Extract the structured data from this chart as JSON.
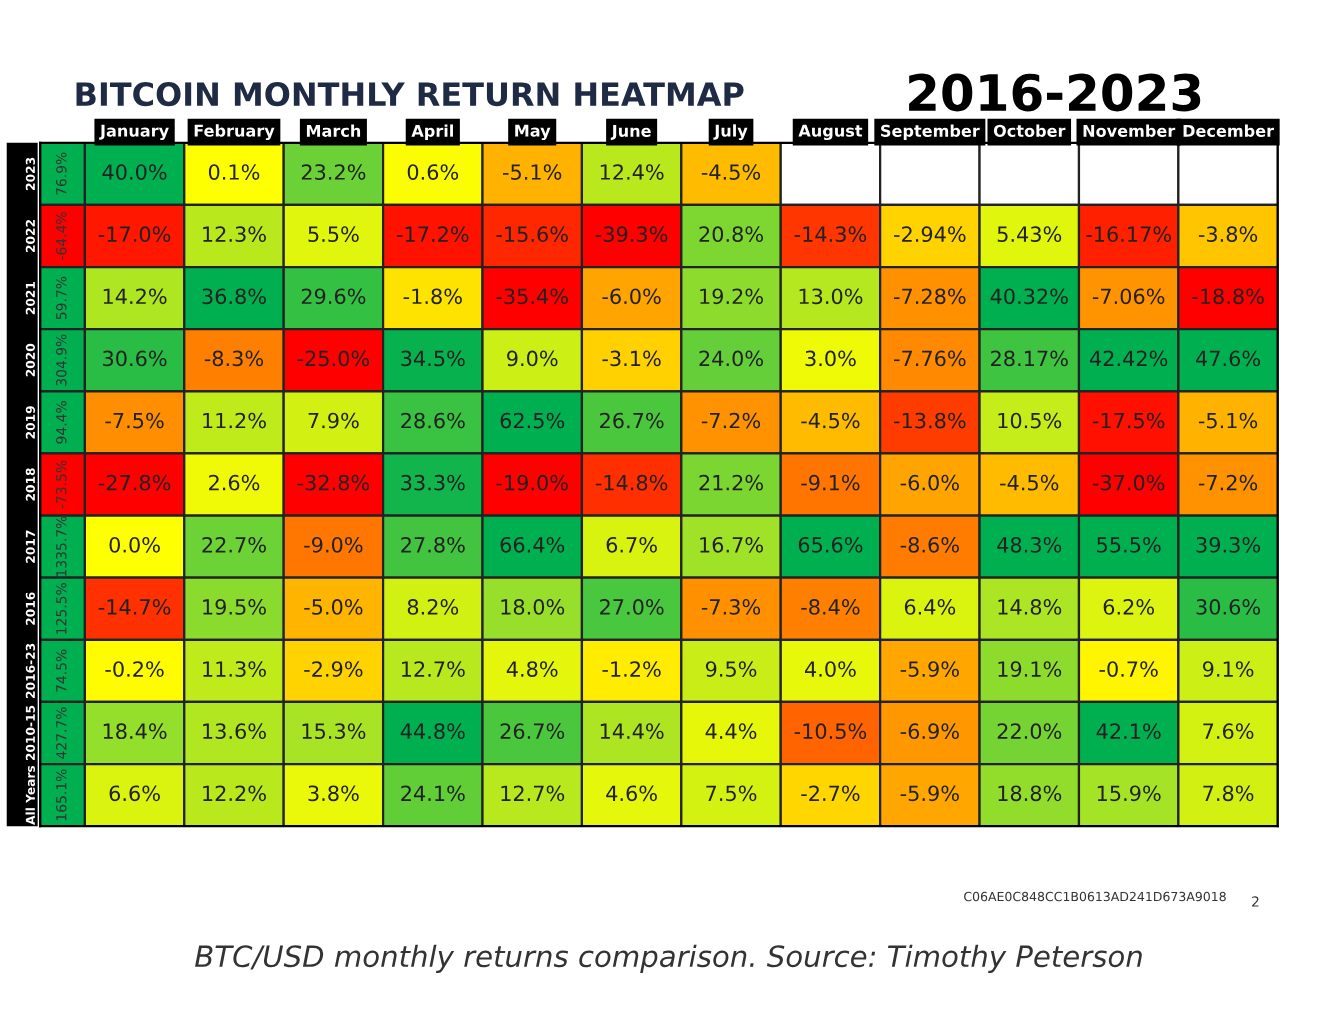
{
  "chart_data": {
    "type": "heatmap",
    "title": "BITCOIN MONTHLY RETURN HEATMAP",
    "subtitle": "2016-2023",
    "categories": [
      null,
      "January",
      "February",
      "March",
      "April",
      "May",
      "June",
      "July",
      "August",
      "September",
      "October",
      "November",
      "December"
    ],
    "y_categories": [
      "2023",
      "2022",
      "2021",
      "2020",
      "2019",
      "2018",
      "2017",
      "2016",
      "2016-23",
      "2010-15",
      "All Years"
    ],
    "cells": [
      [
        76.9,
        40.0,
        0.1,
        23.2,
        0.6,
        -5.1,
        12.4,
        -4.5,
        null,
        null,
        null,
        null,
        null
      ],
      [
        -64.4,
        -17.0,
        12.3,
        5.5,
        -17.2,
        -15.6,
        -39.3,
        20.8,
        -14.3,
        -2.94,
        5.43,
        -16.17,
        -3.8
      ],
      [
        59.7,
        14.2,
        36.8,
        29.6,
        -1.8,
        -35.4,
        -6.0,
        19.2,
        13.0,
        -7.28,
        40.32,
        -7.06,
        -18.8
      ],
      [
        304.9,
        30.6,
        -8.3,
        -25.0,
        34.5,
        9.0,
        -3.1,
        24.0,
        3.0,
        -7.76,
        28.17,
        42.42,
        47.6
      ],
      [
        94.4,
        -7.5,
        11.2,
        7.9,
        28.6,
        62.5,
        26.7,
        -7.2,
        -4.5,
        -13.8,
        10.5,
        -17.5,
        -5.1
      ],
      [
        -73.5,
        -27.8,
        2.6,
        -32.8,
        33.3,
        -19.0,
        -14.8,
        21.2,
        -9.1,
        -6.0,
        -4.5,
        -37.0,
        -7.2
      ],
      [
        1335.7,
        0.0,
        22.7,
        -9.0,
        27.8,
        66.4,
        6.7,
        16.7,
        65.6,
        -8.6,
        48.3,
        55.5,
        39.3
      ],
      [
        125.5,
        -14.7,
        19.5,
        -5.0,
        8.2,
        18.0,
        27.0,
        -7.3,
        -8.4,
        6.4,
        14.8,
        6.2,
        30.6
      ],
      [
        74.5,
        -0.2,
        11.3,
        -2.9,
        12.7,
        4.8,
        -1.2,
        9.5,
        4.0,
        -5.9,
        19.1,
        -0.7,
        9.1
      ],
      [
        427.7,
        18.4,
        13.6,
        15.3,
        44.8,
        26.7,
        14.4,
        4.4,
        -10.5,
        -6.9,
        22.0,
        42.1,
        7.6
      ],
      [
        165.1,
        6.6,
        12.2,
        3.8,
        24.1,
        12.7,
        4.6,
        7.5,
        -2.7,
        -5.9,
        18.8,
        15.9,
        7.8
      ]
    ],
    "cell_labels": [
      [
        "76.9%",
        "40.0%",
        "0.1%",
        "23.2%",
        "0.6%",
        "-5.1%",
        "12.4%",
        "-4.5%",
        null,
        null,
        null,
        null,
        null
      ],
      [
        "-64.4%",
        "-17.0%",
        "12.3%",
        "5.5%",
        "-17.2%",
        "-15.6%",
        "-39.3%",
        "20.8%",
        "-14.3%",
        "-2.94%",
        "5.43%",
        "-16.17%",
        "-3.8%"
      ],
      [
        "59.7%",
        "14.2%",
        "36.8%",
        "29.6%",
        "-1.8%",
        "-35.4%",
        "-6.0%",
        "19.2%",
        "13.0%",
        "-7.28%",
        "40.32%",
        "-7.06%",
        "-18.8%"
      ],
      [
        "304.9%",
        "30.6%",
        "-8.3%",
        "-25.0%",
        "34.5%",
        "9.0%",
        "-3.1%",
        "24.0%",
        "3.0%",
        "-7.76%",
        "28.17%",
        "42.42%",
        "47.6%"
      ],
      [
        "94.4%",
        "-7.5%",
        "11.2%",
        "7.9%",
        "28.6%",
        "62.5%",
        "26.7%",
        "-7.2%",
        "-4.5%",
        "-13.8%",
        "10.5%",
        "-17.5%",
        "-5.1%"
      ],
      [
        "-73.5%",
        "-27.8%",
        "2.6%",
        "-32.8%",
        "33.3%",
        "-19.0%",
        "-14.8%",
        "21.2%",
        "-9.1%",
        "-6.0%",
        "-4.5%",
        "-37.0%",
        "-7.2%"
      ],
      [
        "1335.7%",
        "0.0%",
        "22.7%",
        "-9.0%",
        "27.8%",
        "66.4%",
        "6.7%",
        "16.7%",
        "65.6%",
        "-8.6%",
        "48.3%",
        "55.5%",
        "39.3%"
      ],
      [
        "125.5%",
        "-14.7%",
        "19.5%",
        "-5.0%",
        "8.2%",
        "18.0%",
        "27.0%",
        "-7.3%",
        "-8.4%",
        "6.4%",
        "14.8%",
        "6.2%",
        "30.6%"
      ],
      [
        "74.5%",
        "-0.2%",
        "11.3%",
        "-2.9%",
        "12.7%",
        "4.8%",
        "-1.2%",
        "9.5%",
        "4.0%",
        "-5.9%",
        "19.1%",
        "-0.7%",
        "9.1%"
      ],
      [
        "427.7%",
        "18.4%",
        "13.6%",
        "15.3%",
        "44.8%",
        "26.7%",
        "14.4%",
        "4.4%",
        "-10.5%",
        "-6.9%",
        "22.0%",
        "42.1%",
        "7.6%"
      ],
      [
        "165.1%",
        "6.6%",
        "12.2%",
        "3.8%",
        "24.1%",
        "12.7%",
        "4.6%",
        "7.5%",
        "-2.7%",
        "-5.9%",
        "18.8%",
        "15.9%",
        "7.8%"
      ]
    ],
    "annotations": [
      "C06AE0C848CC1B0613AD241D673A9018",
      "2",
      "BTC/USD monthly returns comparison. Source: Timothy Peterson"
    ]
  }
}
